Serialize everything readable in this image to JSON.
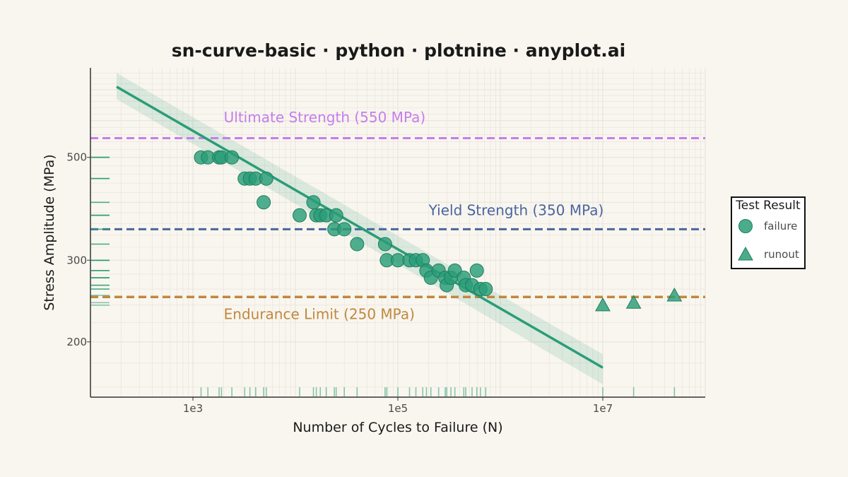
{
  "chart_data": {
    "type": "scatter",
    "title": "sn-curve-basic · python · plotnine · anyplot.ai",
    "xlabel": "Number of Cycles to Failure (N)",
    "ylabel": "Stress Amplitude (MPa)",
    "x_scale": "log10",
    "y_scale": "log10",
    "xlim": [
      100,
      100000000
    ],
    "ylim": [
      152,
      780
    ],
    "x_ticks": [
      {
        "value": 1000,
        "label": "1e3"
      },
      {
        "value": 100000,
        "label": "1e5"
      },
      {
        "value": 10000000,
        "label": "1e7"
      }
    ],
    "y_ticks": [
      {
        "value": 200,
        "label": "200"
      },
      {
        "value": 300,
        "label": "300"
      },
      {
        "value": 500,
        "label": "500"
      }
    ],
    "grid": true,
    "rug": true,
    "colors": {
      "failure": "#2a9d77",
      "runout": "#2a9d77",
      "fit_line": "#2a9d77",
      "band": "#2a9d77",
      "ultimate": "#c77dec",
      "yield": "#4a66a0",
      "endurance": "#c0883d",
      "axis": "#333333",
      "grid": "#e6e2da",
      "background": "#f9f6ef"
    },
    "reference_lines": [
      {
        "label": "Ultimate Strength (550 MPa)",
        "y": 550,
        "color": "#c77dec",
        "label_x": 2000,
        "label_y": 595
      },
      {
        "label": "Yield Strength (350 MPa)",
        "y": 350,
        "color": "#4a66a0",
        "label_x": 200000,
        "label_y": 375
      },
      {
        "label": "Endurance Limit (250 MPa)",
        "y": 250,
        "color": "#c0883d",
        "label_x": 2000,
        "label_y": 224
      }
    ],
    "fit_line": {
      "x": [
        180,
        10000000
      ],
      "y": [
        710,
        176
      ]
    },
    "confidence_band": {
      "x": [
        180,
        10000000
      ],
      "upper": [
        760,
        188
      ],
      "lower": [
        668,
        162
      ]
    },
    "legend": {
      "title": "Test Result",
      "position": "right",
      "entries": [
        {
          "label": "failure",
          "shape": "circle"
        },
        {
          "label": "runout",
          "shape": "triangle"
        }
      ]
    },
    "series": [
      {
        "name": "failure",
        "shape": "circle",
        "points": [
          [
            1200,
            500
          ],
          [
            1400,
            500
          ],
          [
            1800,
            500
          ],
          [
            1900,
            500
          ],
          [
            2400,
            500
          ],
          [
            3200,
            450
          ],
          [
            3600,
            450
          ],
          [
            4100,
            450
          ],
          [
            5200,
            450
          ],
          [
            4900,
            400
          ],
          [
            11000,
            375
          ],
          [
            15000,
            400
          ],
          [
            16000,
            375
          ],
          [
            17500,
            375
          ],
          [
            20000,
            375
          ],
          [
            25000,
            375
          ],
          [
            24000,
            350
          ],
          [
            30000,
            350
          ],
          [
            40000,
            325
          ],
          [
            75000,
            325
          ],
          [
            78000,
            300
          ],
          [
            100000,
            300
          ],
          [
            130000,
            300
          ],
          [
            150000,
            300
          ],
          [
            175000,
            300
          ],
          [
            190000,
            285
          ],
          [
            210000,
            275
          ],
          [
            250000,
            285
          ],
          [
            290000,
            275
          ],
          [
            300000,
            265
          ],
          [
            330000,
            275
          ],
          [
            360000,
            285
          ],
          [
            440000,
            275
          ],
          [
            460000,
            265
          ],
          [
            530000,
            265
          ],
          [
            590000,
            285
          ],
          [
            640000,
            260
          ],
          [
            720000,
            260
          ]
        ]
      },
      {
        "name": "runout",
        "shape": "triangle",
        "points": [
          [
            10000000,
            240
          ],
          [
            20000000,
            243
          ],
          [
            50000000,
            252
          ]
        ]
      }
    ]
  }
}
